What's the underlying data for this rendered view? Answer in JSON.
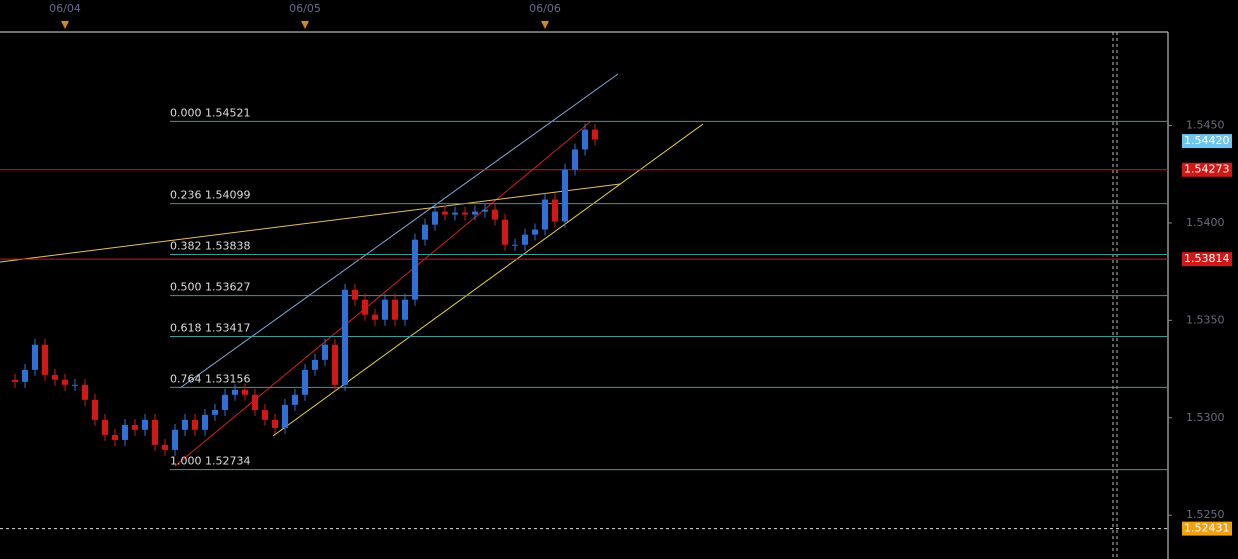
{
  "chart_data": {
    "type": "candlestick",
    "closes": [
      1.53195,
      1.53184,
      1.53246,
      1.53375,
      1.5322,
      1.53195,
      1.53169,
      1.53169,
      1.53092,
      1.52989,
      1.52912,
      1.52886,
      1.52963,
      1.52938,
      1.52989,
      1.52861,
      1.52835,
      1.52938,
      1.52989,
      1.52938,
      1.53015,
      1.5304,
      1.53118,
      1.53143,
      1.53118,
      1.5304,
      1.52989,
      1.52948,
      1.53066,
      1.53118,
      1.53246,
      1.53297,
      1.53375,
      1.53169,
      1.53657,
      1.53606,
      1.53529,
      1.53503,
      1.53606,
      1.53503,
      1.53606,
      1.53914,
      1.53991,
      1.54058,
      1.54043,
      1.54053,
      1.54043,
      1.54058,
      1.54068,
      1.54017,
      1.53888,
      1.53888,
      1.5394,
      1.53966,
      1.5412,
      1.54007,
      1.54274,
      1.54377,
      1.54479,
      1.54428
    ],
    "up_color": "#2f6fd6",
    "down_color": "#d01818",
    "xticks": [
      {
        "value": 6,
        "label": "06/04"
      },
      {
        "value": 30,
        "label": "06/05"
      },
      {
        "value": 54,
        "label": "06/06"
      }
    ],
    "ylim": [
      1.52275,
      1.5498
    ],
    "yticks": [
      {
        "value": 1.545,
        "label": "1.5450"
      },
      {
        "value": 1.54,
        "label": "1.5400"
      },
      {
        "value": 1.535,
        "label": "1.5350"
      },
      {
        "value": 1.53,
        "label": "1.5300"
      },
      {
        "value": 1.525,
        "label": "1.5250"
      }
    ],
    "fib_levels": [
      {
        "value": 1.54521,
        "label": "0.000 1.54521"
      },
      {
        "value": 1.54099,
        "label": "0.236 1.54099"
      },
      {
        "value": 1.53838,
        "label": "0.382 1.53838"
      },
      {
        "value": 1.53627,
        "label": "0.500 1.53627"
      },
      {
        "value": 1.53417,
        "label": "0.618 1.53417"
      },
      {
        "value": 1.53156,
        "label": "0.764 1.53156"
      },
      {
        "value": 1.52734,
        "label": "1.000 1.52734"
      }
    ],
    "fib_color": "#3c9a9a",
    "price_tags": [
      {
        "value": 1.5442,
        "label": "1.54420",
        "color": "#6ec6f0",
        "line": false
      },
      {
        "value": 1.54273,
        "label": "1.54273",
        "color": "#d01818",
        "line": true
      },
      {
        "value": 1.53814,
        "label": "1.53814",
        "color": "#d01818",
        "line": true
      },
      {
        "value": 1.52431,
        "label": "1.52431",
        "color": "#f0a010",
        "line": "dashed"
      }
    ]
  }
}
